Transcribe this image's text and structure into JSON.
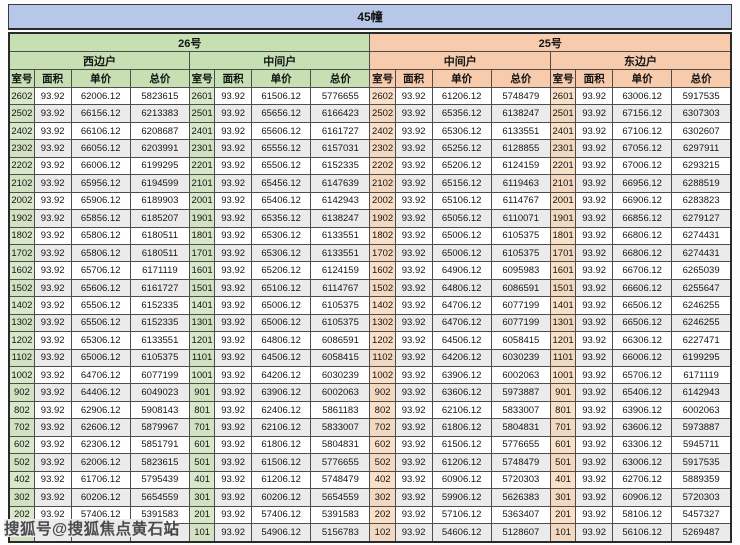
{
  "title": "45幢",
  "watermark": "搜狐号@搜狐焦点黄石站",
  "colors": {
    "title_band": "#b7c7e8",
    "section_26_green": "#c6e0b4",
    "section_25_peach": "#f8cbad",
    "room_cell_green": "#d9e8ca",
    "room_cell_peach": "#fadfc9",
    "row_stripe": "#ebebeb",
    "border": "#4d4d4d"
  },
  "table": {
    "sections": [
      {
        "label": "26号",
        "units": [
          "西边户",
          "中间户"
        ]
      },
      {
        "label": "25号",
        "units": [
          "中间户",
          "东边户"
        ]
      }
    ],
    "column_headers": [
      "室号",
      "面积",
      "单价",
      "总价"
    ],
    "rows": [
      [
        "2602",
        "93.92",
        "62006.12",
        "5823615",
        "2601",
        "93.92",
        "61506.12",
        "5776655",
        "2602",
        "93.92",
        "61206.12",
        "5748479",
        "2601",
        "93.92",
        "63006.12",
        "5917535"
      ],
      [
        "2502",
        "93.92",
        "66156.12",
        "6213383",
        "2501",
        "93.92",
        "65656.12",
        "6166423",
        "2502",
        "93.92",
        "65356.12",
        "6138247",
        "2501",
        "93.92",
        "67156.12",
        "6307303"
      ],
      [
        "2402",
        "93.92",
        "66106.12",
        "6208687",
        "2401",
        "93.92",
        "65606.12",
        "6161727",
        "2402",
        "93.92",
        "65306.12",
        "6133551",
        "2401",
        "93.92",
        "67106.12",
        "6302607"
      ],
      [
        "2302",
        "93.92",
        "66056.12",
        "6203991",
        "2301",
        "93.92",
        "65556.12",
        "6157031",
        "2302",
        "93.92",
        "65256.12",
        "6128855",
        "2301",
        "93.92",
        "67056.12",
        "6297911"
      ],
      [
        "2202",
        "93.92",
        "66006.12",
        "6199295",
        "2201",
        "93.92",
        "65506.12",
        "6152335",
        "2202",
        "93.92",
        "65206.12",
        "6124159",
        "2201",
        "93.92",
        "67006.12",
        "6293215"
      ],
      [
        "2102",
        "93.92",
        "65956.12",
        "6194599",
        "2101",
        "93.92",
        "65456.12",
        "6147639",
        "2102",
        "93.92",
        "65156.12",
        "6119463",
        "2101",
        "93.92",
        "66956.12",
        "6288519"
      ],
      [
        "2002",
        "93.92",
        "65906.12",
        "6189903",
        "2001",
        "93.92",
        "65406.12",
        "6142943",
        "2002",
        "93.92",
        "65106.12",
        "6114767",
        "2001",
        "93.92",
        "66906.12",
        "6283823"
      ],
      [
        "1902",
        "93.92",
        "65856.12",
        "6185207",
        "1901",
        "93.92",
        "65356.12",
        "6138247",
        "1902",
        "93.92",
        "65056.12",
        "6110071",
        "1901",
        "93.92",
        "66856.12",
        "6279127"
      ],
      [
        "1802",
        "93.92",
        "65806.12",
        "6180511",
        "1801",
        "93.92",
        "65306.12",
        "6133551",
        "1802",
        "93.92",
        "65006.12",
        "6105375",
        "1801",
        "93.92",
        "66806.12",
        "6274431"
      ],
      [
        "1702",
        "93.92",
        "65806.12",
        "6180511",
        "1701",
        "93.92",
        "65306.12",
        "6133551",
        "1702",
        "93.92",
        "65006.12",
        "6105375",
        "1701",
        "93.92",
        "66806.12",
        "6274431"
      ],
      [
        "1602",
        "93.92",
        "65706.12",
        "6171119",
        "1601",
        "93.92",
        "65206.12",
        "6124159",
        "1602",
        "93.92",
        "64906.12",
        "6095983",
        "1601",
        "93.92",
        "66706.12",
        "6265039"
      ],
      [
        "1502",
        "93.92",
        "65606.12",
        "6161727",
        "1501",
        "93.92",
        "65106.12",
        "6114767",
        "1502",
        "93.92",
        "64806.12",
        "6086591",
        "1501",
        "93.92",
        "66606.12",
        "6255647"
      ],
      [
        "1402",
        "93.92",
        "65506.12",
        "6152335",
        "1401",
        "93.92",
        "65006.12",
        "6105375",
        "1402",
        "93.92",
        "64706.12",
        "6077199",
        "1401",
        "93.92",
        "66506.12",
        "6246255"
      ],
      [
        "1302",
        "93.92",
        "65506.12",
        "6152335",
        "1301",
        "93.92",
        "65006.12",
        "6105375",
        "1302",
        "93.92",
        "64706.12",
        "6077199",
        "1301",
        "93.92",
        "66506.12",
        "6246255"
      ],
      [
        "1202",
        "93.92",
        "65306.12",
        "6133551",
        "1201",
        "93.92",
        "64806.12",
        "6086591",
        "1202",
        "93.92",
        "64506.12",
        "6058415",
        "1201",
        "93.92",
        "66306.12",
        "6227471"
      ],
      [
        "1102",
        "93.92",
        "65006.12",
        "6105375",
        "1101",
        "93.92",
        "64506.12",
        "6058415",
        "1102",
        "93.92",
        "64206.12",
        "6030239",
        "1101",
        "93.92",
        "66006.12",
        "6199295"
      ],
      [
        "1002",
        "93.92",
        "64706.12",
        "6077199",
        "1001",
        "93.92",
        "64206.12",
        "6030239",
        "1002",
        "93.92",
        "63906.12",
        "6002063",
        "1001",
        "93.92",
        "65706.12",
        "6171119"
      ],
      [
        "902",
        "93.92",
        "64406.12",
        "6049023",
        "901",
        "93.92",
        "63906.12",
        "6002063",
        "902",
        "93.92",
        "63606.12",
        "5973887",
        "901",
        "93.92",
        "65406.12",
        "6142943"
      ],
      [
        "802",
        "93.92",
        "62906.12",
        "5908143",
        "801",
        "93.92",
        "62406.12",
        "5861183",
        "802",
        "93.92",
        "62106.12",
        "5833007",
        "801",
        "93.92",
        "63906.12",
        "6002063"
      ],
      [
        "702",
        "93.92",
        "62606.12",
        "5879967",
        "701",
        "93.92",
        "62106.12",
        "5833007",
        "702",
        "93.92",
        "61806.12",
        "5804831",
        "701",
        "93.92",
        "63606.12",
        "5973887"
      ],
      [
        "602",
        "93.92",
        "62306.12",
        "5851791",
        "601",
        "93.92",
        "61806.12",
        "5804831",
        "602",
        "93.92",
        "61506.12",
        "5776655",
        "601",
        "93.92",
        "63306.12",
        "5945711"
      ],
      [
        "502",
        "93.92",
        "62006.12",
        "5823615",
        "501",
        "93.92",
        "61506.12",
        "5776655",
        "502",
        "93.92",
        "61206.12",
        "5748479",
        "501",
        "93.92",
        "63006.12",
        "5917535"
      ],
      [
        "402",
        "93.92",
        "61706.12",
        "5795439",
        "401",
        "93.92",
        "61206.12",
        "5748479",
        "402",
        "93.92",
        "60906.12",
        "5720303",
        "401",
        "93.92",
        "62706.12",
        "5889359"
      ],
      [
        "302",
        "93.92",
        "60206.12",
        "5654559",
        "301",
        "93.92",
        "60206.12",
        "5654559",
        "302",
        "93.92",
        "59906.12",
        "5626383",
        "301",
        "93.92",
        "60906.12",
        "5720303"
      ],
      [
        "202",
        "93.92",
        "57406.12",
        "5391583",
        "201",
        "93.92",
        "57406.12",
        "5391583",
        "202",
        "93.92",
        "57106.12",
        "5363407",
        "201",
        "93.92",
        "58106.12",
        "5457327"
      ],
      [
        "102",
        "93.92",
        "55406.12",
        "5203743",
        "101",
        "93.92",
        "54906.12",
        "5156783",
        "102",
        "93.92",
        "54606.12",
        "5128607",
        "101",
        "93.92",
        "56106.12",
        "5269487"
      ]
    ]
  }
}
